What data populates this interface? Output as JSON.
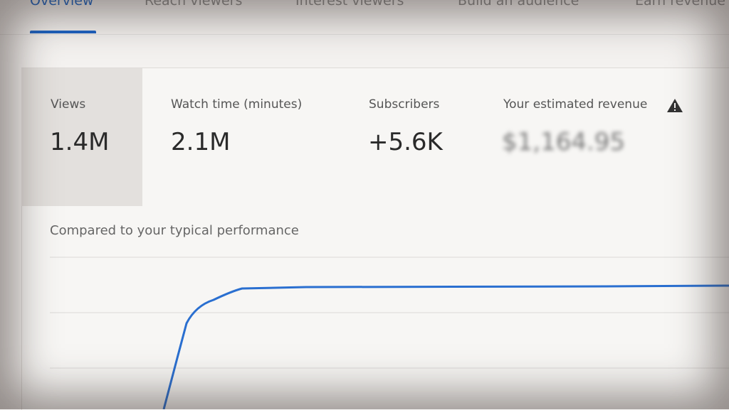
{
  "tabs": [
    "Overview",
    "Reach viewers",
    "Interest viewers",
    "Build an audience",
    "Earn revenue"
  ],
  "metrics": [
    {
      "label": "Views",
      "value": "1.4M"
    },
    {
      "label": "Watch time (minutes)",
      "value": "2.1M"
    },
    {
      "label": "Subscribers",
      "value": "+5.6K"
    },
    {
      "label": "Your estimated revenue",
      "value": "$1,164.95"
    }
  ],
  "comparison": {
    "title": "Compared to your typical performance"
  }
}
